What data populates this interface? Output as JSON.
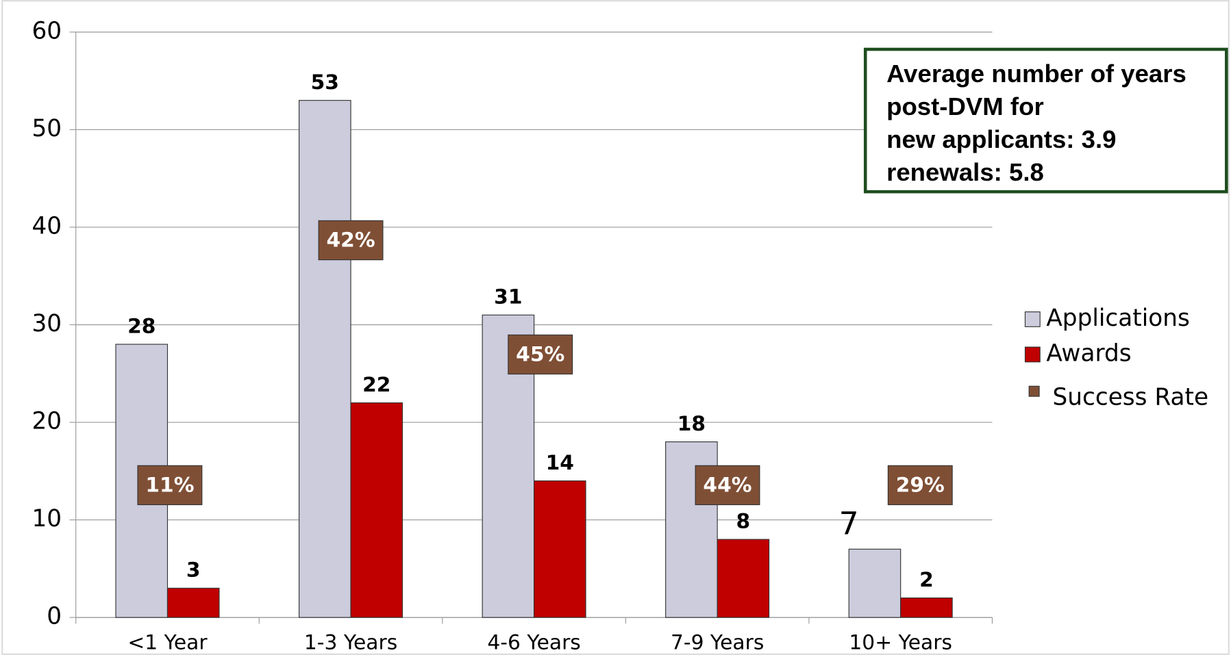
{
  "chart_data": {
    "type": "bar",
    "categories": [
      "<1 Year",
      "1-3 Years",
      "4-6 Years",
      "7-9 Years",
      "10+ Years"
    ],
    "series": [
      {
        "name": "Applications",
        "color": "#ccccdd",
        "values": [
          28,
          53,
          31,
          18,
          7
        ]
      },
      {
        "name": "Awards",
        "color": "#c00000",
        "values": [
          3,
          22,
          14,
          8,
          2
        ]
      },
      {
        "name": "Success Rate",
        "color": "#7f4f35",
        "values": [
          11,
          42,
          45,
          44,
          29
        ],
        "value_labels": [
          "11%",
          "42%",
          "45%",
          "44%",
          "29%"
        ]
      }
    ],
    "ylim": [
      0,
      60
    ],
    "yticks": [
      0,
      10,
      20,
      30,
      40,
      50,
      60
    ],
    "grid": true,
    "legend": "right",
    "annotation": [
      "Average number of years",
      "post-DVM for",
      "new applicants: 3.9",
      "renewals: 5.8"
    ]
  }
}
